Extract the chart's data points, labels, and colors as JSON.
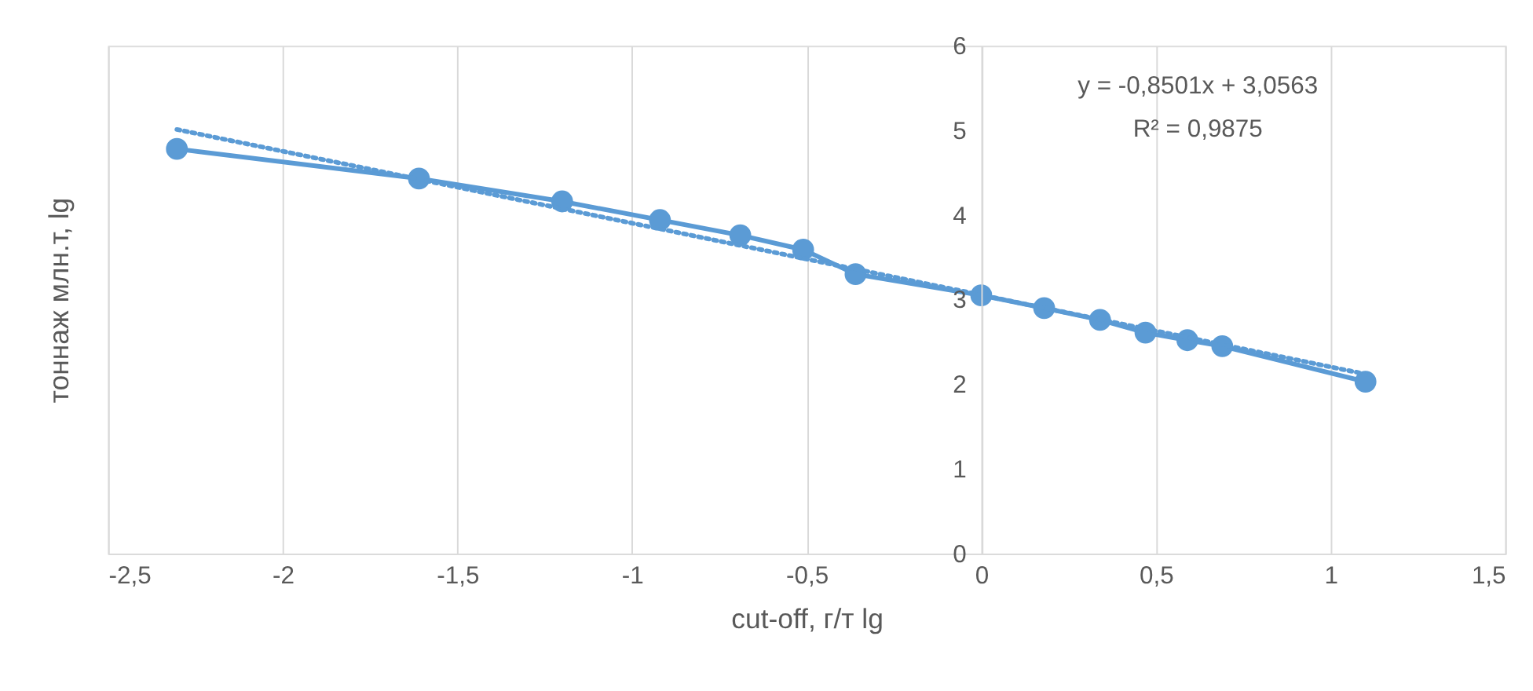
{
  "chart_data": {
    "type": "scatter",
    "xlabel": "cut-off, г/т lg",
    "ylabel": "тоннаж млн.т, lg",
    "x": [
      -2.303,
      -1.61,
      -1.2,
      -0.92,
      -0.69,
      -0.51,
      -0.36,
      0,
      0.18,
      0.34,
      0.47,
      0.59,
      0.69,
      1.1
    ],
    "series": [
      {
        "type": "line",
        "marker": "circle",
        "line_style": "solid",
        "color": "#5b9bd5",
        "values": [
          4.78,
          4.43,
          4.16,
          3.94,
          3.76,
          3.59,
          3.3,
          3.05,
          2.9,
          2.76,
          2.61,
          2.52,
          2.45,
          2.03
        ]
      },
      {
        "type": "line",
        "marker": "none",
        "line_style": "dotted",
        "color": "#5b9bd5",
        "x": [
          -2.303,
          1.1
        ],
        "values": [
          5.01,
          2.12
        ]
      }
    ],
    "annotations": [
      "y = -0,8501x + 3,0563",
      "R² = 0,9875"
    ],
    "xlim": [
      -2.5,
      1.5
    ],
    "xticks": [
      {
        "value": -2.5,
        "label": "-2,5"
      },
      -2,
      {
        "value": -1.5,
        "label": "-1,5"
      },
      -1,
      {
        "value": -0.5,
        "label": "-0,5"
      },
      0,
      {
        "value": 0.5,
        "label": "0,5"
      },
      1,
      {
        "value": 1.5,
        "label": "1,5"
      }
    ],
    "ylim": [
      0,
      6
    ],
    "yticks": [
      0,
      1,
      2,
      3,
      4,
      5,
      6
    ],
    "grid": "x",
    "legend": false
  }
}
